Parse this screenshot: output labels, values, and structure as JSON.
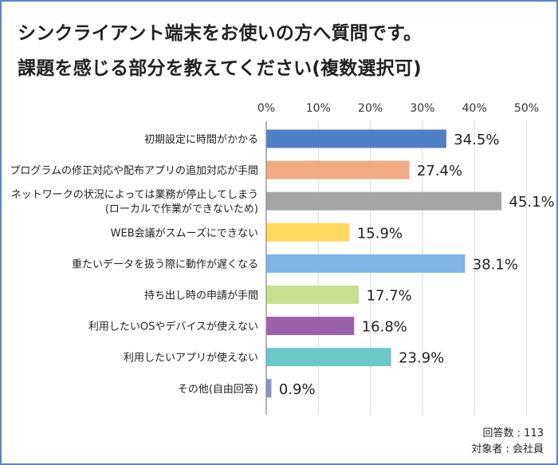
{
  "header": {
    "title_line1": "シンクライアント端末をお使いの方へ質問です。",
    "title_line2": "課題を感じる部分を教えてください(複数選択可)"
  },
  "footnote": {
    "respondents": "回答数 : 113",
    "target": "対象者 : 会社員"
  },
  "chart_data": {
    "type": "bar",
    "orientation": "horizontal",
    "title": "",
    "xlabel": "",
    "ylabel": "",
    "xlim": [
      0,
      50
    ],
    "ticks": [
      "0%",
      "10%",
      "20%",
      "30%",
      "40%",
      "50%"
    ],
    "grid": true,
    "categories": [
      [
        "初期設定に時間がかかる"
      ],
      [
        "プログラムの修正対応や配布アプリの追加対応が手間"
      ],
      [
        "ネットワークの状況によっては業務が停止してしまう",
        "(ローカルで作業ができないため)"
      ],
      [
        "WEB会議がスムーズにできない"
      ],
      [
        "重たいデータを扱う際に動作が遅くなる"
      ],
      [
        "持ち出し時の申請が手間"
      ],
      [
        "利用したいOSやデバイスが使えない"
      ],
      [
        "利用したいアプリが使えない"
      ],
      [
        "その他(自由回答)"
      ]
    ],
    "values": [
      34.5,
      27.4,
      45.1,
      15.9,
      38.1,
      17.7,
      16.8,
      23.9,
      0.9
    ],
    "value_labels": [
      "34.5%",
      "27.4%",
      "45.1%",
      "15.9%",
      "38.1%",
      "17.7%",
      "16.8%",
      "23.9%",
      "0.9%"
    ],
    "colors": [
      "#4f7fc5",
      "#f2aa85",
      "#a5a5a5",
      "#ffda5f",
      "#7fb5e6",
      "#c9df8e",
      "#9a62a8",
      "#6cc8c8",
      "#8b8fc2"
    ]
  }
}
